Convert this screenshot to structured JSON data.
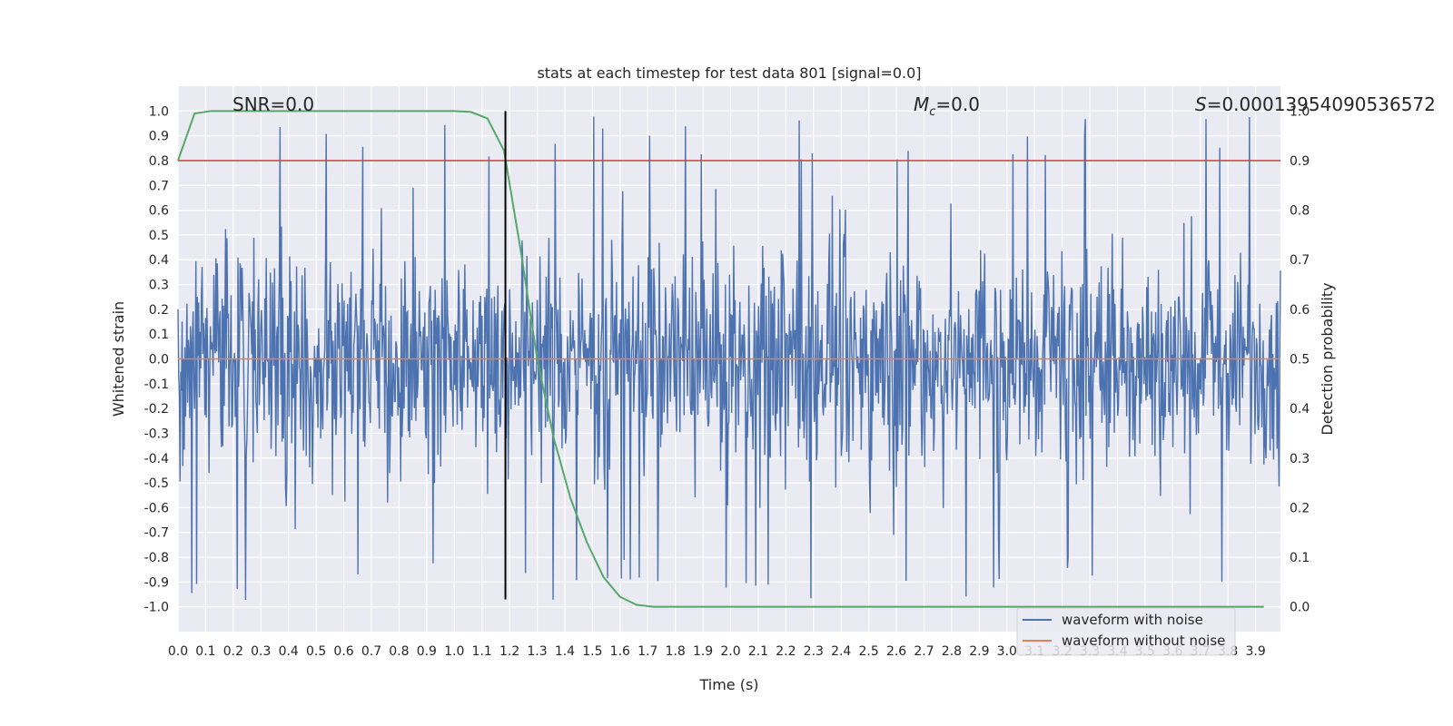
{
  "chart_data": {
    "type": "line",
    "title": "stats at each timestep for test data 801 [signal=0.0]",
    "xlabel": "Time (s)",
    "ylabel": "Whitened strain",
    "y2label": "Detection probability",
    "xlim": [
      0.0,
      3.99
    ],
    "ylim": [
      -1.1,
      1.1
    ],
    "y2lim": [
      -0.05,
      1.05
    ],
    "x_ticks": [
      "0.0",
      "0.1",
      "0.2",
      "0.3",
      "0.4",
      "0.5",
      "0.6",
      "0.7",
      "0.8",
      "0.9",
      "1.0",
      "1.1",
      "1.2",
      "1.3",
      "1.4",
      "1.5",
      "1.6",
      "1.7",
      "1.8",
      "1.9",
      "2.0",
      "2.1",
      "2.2",
      "2.3",
      "2.4",
      "2.5",
      "2.6",
      "2.7",
      "2.8",
      "2.9",
      "3.0",
      "3.1",
      "3.2",
      "3.3",
      "3.4",
      "3.5",
      "3.6",
      "3.7",
      "3.8",
      "3.9"
    ],
    "y_ticks": [
      "1.0",
      "0.9",
      "0.8",
      "0.7",
      "0.6",
      "0.5",
      "0.4",
      "0.3",
      "0.2",
      "0.1",
      "0.0",
      "-0.1",
      "-0.2",
      "-0.3",
      "-0.4",
      "-0.5",
      "-0.6",
      "-0.7",
      "-0.8",
      "-0.9",
      "-1.0"
    ],
    "y2_ticks": [
      "1.0",
      "0.9",
      "0.8",
      "0.7",
      "0.6",
      "0.5",
      "0.4",
      "0.3",
      "0.2",
      "0.1",
      "0.0"
    ],
    "annotations": {
      "snr": "SNR=0.0",
      "mc_symbol": "M",
      "mc_sub": "c",
      "mc_value": "=0.0",
      "s_symbol": "S",
      "s_value": "=0.00013954090536572"
    },
    "series": [
      {
        "name": "waveform with noise",
        "color": "#4c72b0",
        "kind": "noise",
        "amplitude_envelope": 0.85
      },
      {
        "name": "waveform without noise",
        "color": "#dd8452",
        "kind": "constant",
        "value": 0.0
      },
      {
        "name": "detection probability",
        "color": "#55a868",
        "axis": "y2",
        "x": [
          0.0,
          0.06,
          0.12,
          0.2,
          0.4,
          0.6,
          0.8,
          1.0,
          1.06,
          1.12,
          1.18,
          1.24,
          1.3,
          1.36,
          1.42,
          1.48,
          1.54,
          1.6,
          1.66,
          1.72,
          1.8,
          2.0,
          2.5,
          3.0,
          3.5,
          3.93
        ],
        "y": [
          0.9,
          0.995,
          1.0,
          1.0,
          1.0,
          1.0,
          1.0,
          1.0,
          0.998,
          0.985,
          0.92,
          0.72,
          0.5,
          0.34,
          0.22,
          0.13,
          0.06,
          0.02,
          0.004,
          0.0,
          0.0,
          0.0,
          0.0,
          0.0,
          0.0,
          0.0
        ]
      }
    ],
    "threshold": {
      "value": 0.9,
      "axis": "y2",
      "color": "#c44e52"
    },
    "vline": {
      "x": 1.185,
      "color": "#000000",
      "y_top": 1.0,
      "y_bottom": -0.97
    },
    "legend": {
      "placement": "bottom-right",
      "entries": [
        {
          "label": "waveform with noise",
          "color": "#4c72b0"
        },
        {
          "label": "waveform without noise",
          "color": "#dd8452"
        }
      ]
    },
    "grid": true,
    "background": "#eaeaf2"
  }
}
